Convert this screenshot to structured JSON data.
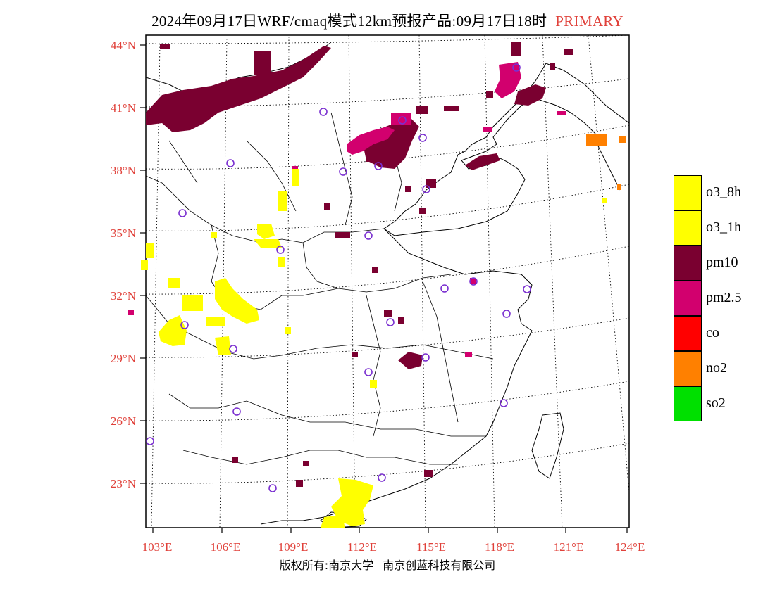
{
  "title": {
    "text": "2024年09月17日WRF/cmaq模式12km预报产品:09月17日18时",
    "tag": "PRIMARY",
    "tag_color": "#e0413a"
  },
  "map": {
    "lat_labels": [
      "44°N",
      "41°N",
      "38°N",
      "35°N",
      "32°N",
      "29°N",
      "26°N",
      "23°N"
    ],
    "lon_labels": [
      "103°E",
      "106°E",
      "109°E",
      "112°E",
      "115°E",
      "118°E",
      "121°E",
      "124°E"
    ],
    "label_color": "#e0413a",
    "station_color": "#7a2fd0"
  },
  "legend": {
    "items": [
      {
        "label": "o3_8h",
        "color": "#ffff00"
      },
      {
        "label": "o3_1h",
        "color": "#ffff00"
      },
      {
        "label": "pm10",
        "color": "#7a0030"
      },
      {
        "label": "pm2.5",
        "color": "#d2006e"
      },
      {
        "label": "co",
        "color": "#ff0000"
      },
      {
        "label": "no2",
        "color": "#ff8000"
      },
      {
        "label": "so2",
        "color": "#00e000"
      }
    ]
  },
  "footer": {
    "left": "版权所有:南京大学",
    "right": "南京创蓝科技有限公司"
  }
}
